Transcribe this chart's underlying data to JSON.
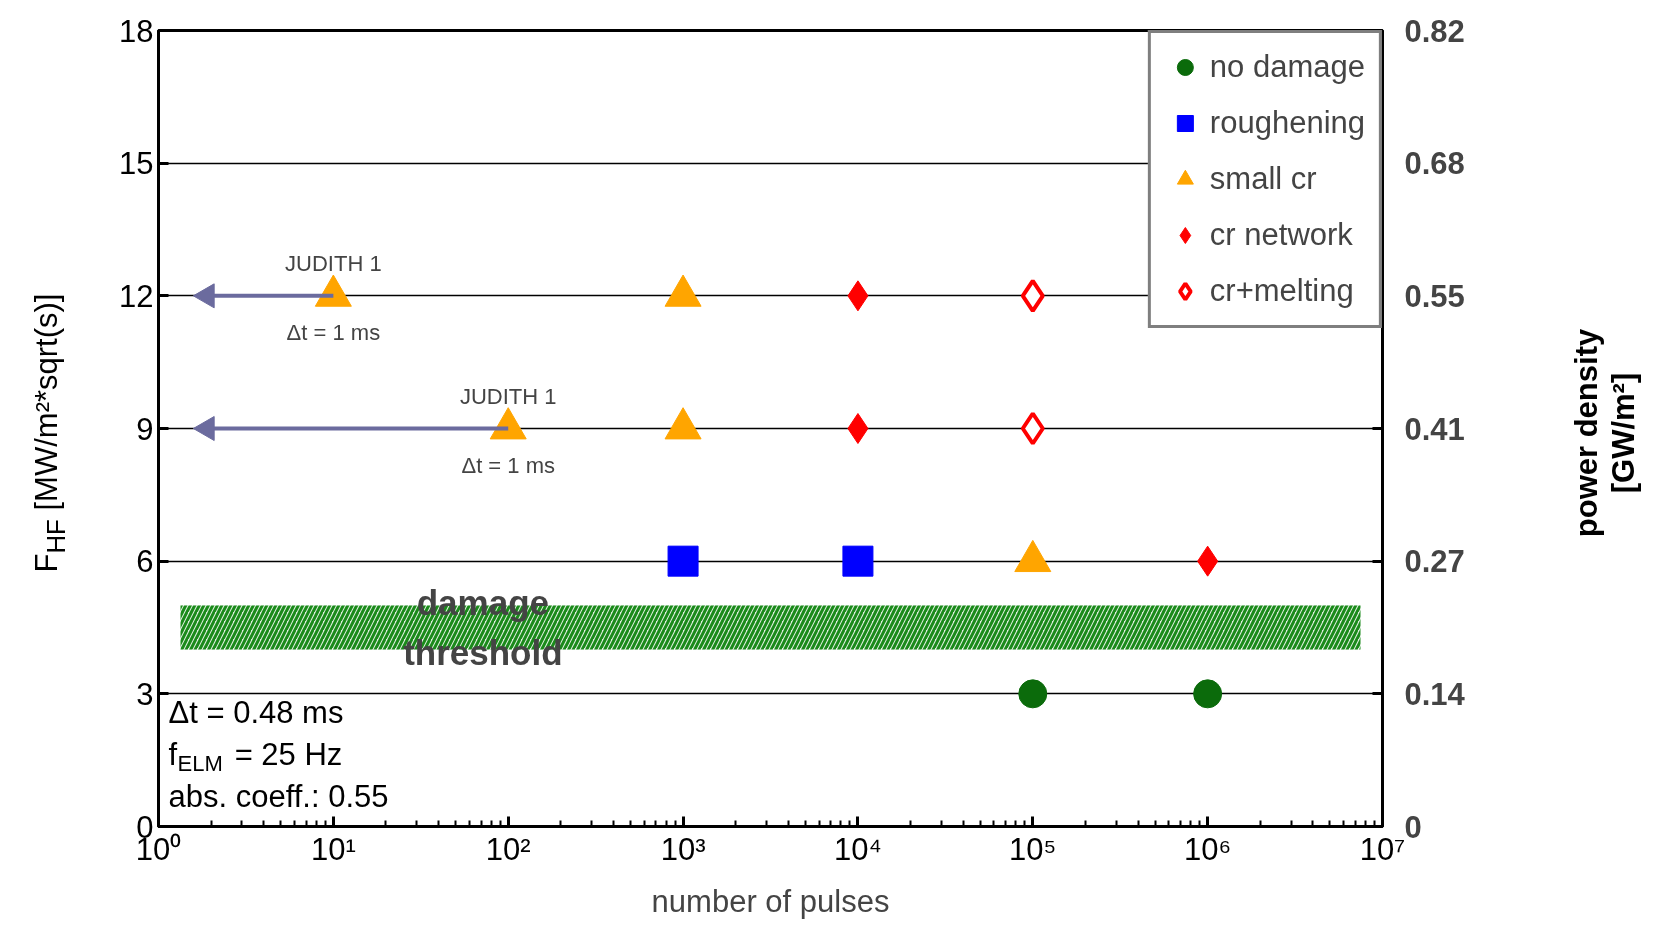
{
  "chart_data": {
    "type": "scatter",
    "xlabel": "number of pulses",
    "ylabel": "F$_{HF}$ [MW/m²*sqrt(s)]",
    "y2label": "power density\n[GW/m²]",
    "log": "x",
    "xlim": [
      1,
      10000000
    ],
    "xticks": [
      {
        "value": 1,
        "label": "10⁰"
      },
      {
        "value": 10,
        "label": "10¹"
      },
      {
        "value": 100,
        "label": "10²"
      },
      {
        "value": 1000,
        "label": "10³"
      },
      {
        "value": 10000,
        "label": "10⁴"
      },
      {
        "value": 100000,
        "label": "10⁵"
      },
      {
        "value": 1000000,
        "label": "10⁶"
      },
      {
        "value": 10000000,
        "label": "10⁷"
      }
    ],
    "ylim": [
      0,
      18
    ],
    "yticks": [
      0,
      3,
      6,
      9,
      12,
      15,
      18
    ],
    "y2lim": [
      0,
      0.82
    ],
    "y2ticks": [
      0,
      {
        "value": 0.1367,
        "label": "0.14"
      },
      {
        "value": 0.2733,
        "label": "0.27"
      },
      0.41,
      {
        "value": 0.5467,
        "label": "0.55"
      },
      {
        "value": 0.6833,
        "label": "0.68"
      },
      0.82
    ],
    "grid": "y",
    "legend": "top right",
    "series": [
      {
        "name": "no damage",
        "color": "#0b6b0b",
        "marker": "circle",
        "x": [
          100000,
          1000000
        ],
        "values": [
          3,
          3
        ]
      },
      {
        "name": "roughening",
        "color": "#0000ff",
        "marker": "square",
        "x": [
          1000,
          10000
        ],
        "values": [
          6,
          6
        ]
      },
      {
        "name": "small cr",
        "color": "#ffa500",
        "marker": "triangle",
        "x": [
          10,
          1000,
          100,
          1000,
          100000
        ],
        "values": [
          12,
          12,
          9,
          9,
          6
        ]
      },
      {
        "name": "cr network",
        "color": "#ff0000",
        "marker": "diamond",
        "x": [
          10000,
          10000,
          1000000
        ],
        "values": [
          12,
          9,
          6
        ]
      },
      {
        "name": "cr+melting",
        "color": "#ff0000",
        "marker": "diamond",
        "x": [
          100000,
          100000
        ],
        "values": [
          12,
          9
        ]
      },
      {
        "type": "line",
        "color": "#6b6b9e",
        "x": [
          1.9,
          10
        ],
        "values": [
          12,
          12
        ]
      },
      {
        "type": "line",
        "color": "#6b6b9e",
        "x": [
          1.9,
          100
        ],
        "values": [
          9,
          9
        ]
      }
    ],
    "bands": [
      {
        "axis": "y",
        "from": 4,
        "to": 5,
        "label": "damage\nthreshold",
        "color": "#1a8a1a"
      }
    ],
    "annotations": [
      "JUDITH 1",
      "Δt = 1 ms",
      "JUDITH 1",
      "Δt = 1 ms",
      "Δt = 0.48 ms",
      "f$_{ELM}$ = 25 Hz",
      "abs. coeff.: 0.55"
    ]
  }
}
